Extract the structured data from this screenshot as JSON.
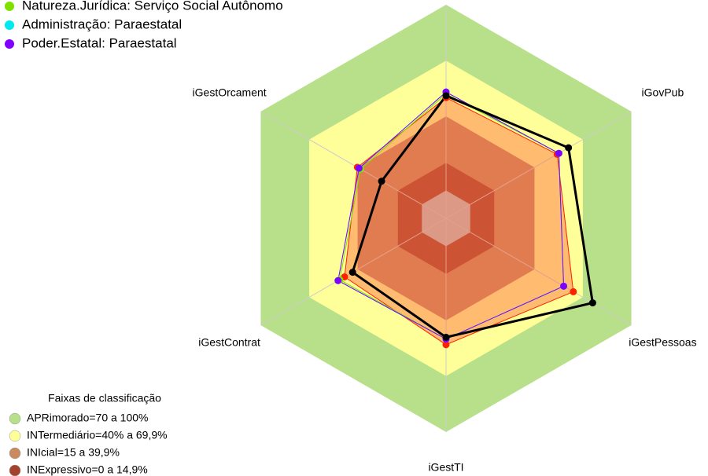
{
  "chart_data": {
    "type": "radar",
    "categories": [
      null,
      "iGovPub",
      "iGestPessoas",
      "iGestTI",
      "iGestContrat",
      "iGestOrcament"
    ],
    "rlim": [
      -15,
      100
    ],
    "band_legend_title": "Faixas de classificação",
    "bands": [
      {
        "label": "APRimorado=70 a 100%",
        "color": "#b8e08a",
        "from": 70,
        "to": 100
      },
      {
        "label": "INTermediário=40% a 69,9%",
        "color": "#ffff99",
        "from": 40,
        "to": 69.9
      },
      {
        "label": "INIcial=15 a 39,9%",
        "color": "#c98a60",
        "from": 15,
        "to": 39.9
      },
      {
        "label": "INExpressivo=0 a 14,9%",
        "color": "#a3432e",
        "from": 0,
        "to": 14.9
      }
    ],
    "center_color": "#c0c0c0",
    "series": [
      {
        "color": "#ff2000",
        "fill": "#ff6a3d",
        "values": [
          50,
          54,
          64,
          53,
          48,
          40
        ]
      },
      {
        "name": "Natureza.Jurídica: Serviço Social Autônomo",
        "color": "#80e000",
        "values": [
          52,
          55,
          58,
          50,
          51,
          38
        ]
      },
      {
        "name": "Administração: Paraestatal",
        "color": "#00e8f0",
        "values": [
          53,
          55,
          58,
          50,
          52,
          39
        ]
      },
      {
        "name": "Poder.Estatal: Paraestatal",
        "color": "#8000ff",
        "values": [
          53,
          55,
          58,
          50,
          52,
          39
        ]
      },
      {
        "color": "#000000",
        "values": [
          51,
          61,
          76,
          49,
          43,
          25
        ]
      }
    ]
  }
}
